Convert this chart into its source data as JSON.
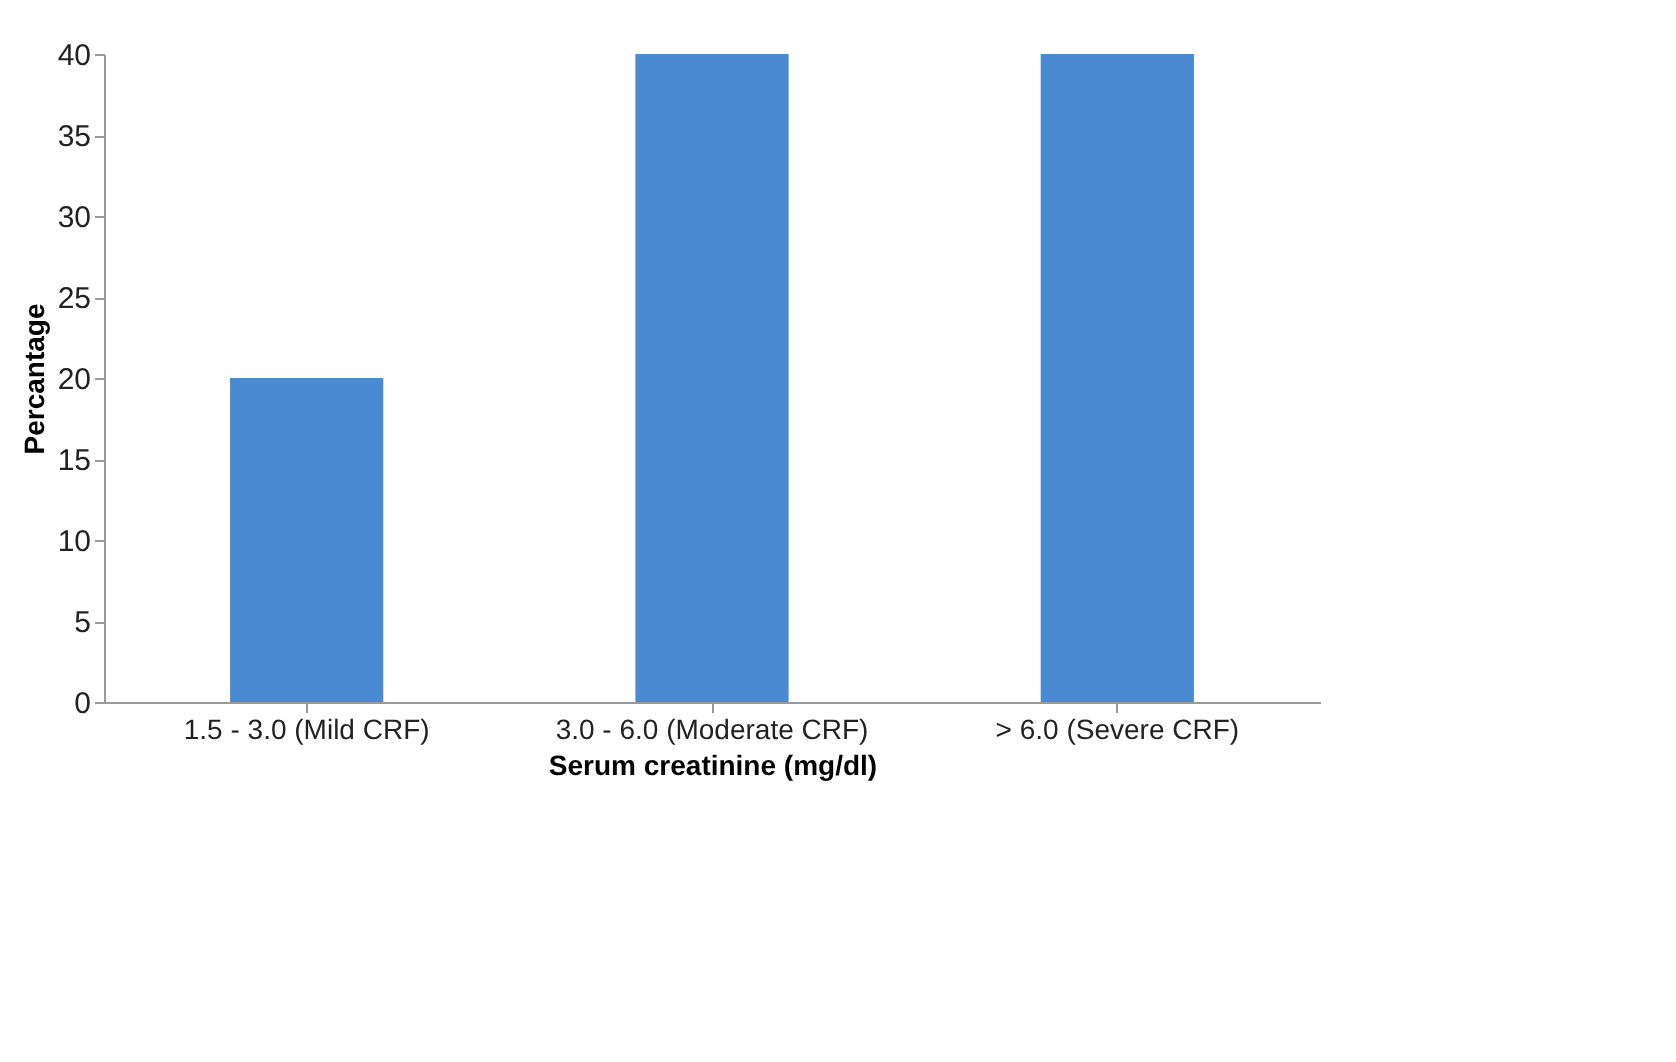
{
  "chart_data": {
    "type": "bar",
    "xlabel": "Serum creatinine (mg/dl)",
    "ylabel": "Percantage",
    "categories": [
      "1.5 - 3.0 (Mild CRF)",
      "3.0 - 6.0 (Moderate CRF)",
      "> 6.0 (Severe CRF)"
    ],
    "values": [
      20,
      40,
      40
    ],
    "color": "#4a8ad2",
    "ylim": [
      0,
      40
    ],
    "yticks": [
      0,
      5,
      10,
      15,
      20,
      25,
      30,
      35,
      40
    ],
    "grid": false
  }
}
